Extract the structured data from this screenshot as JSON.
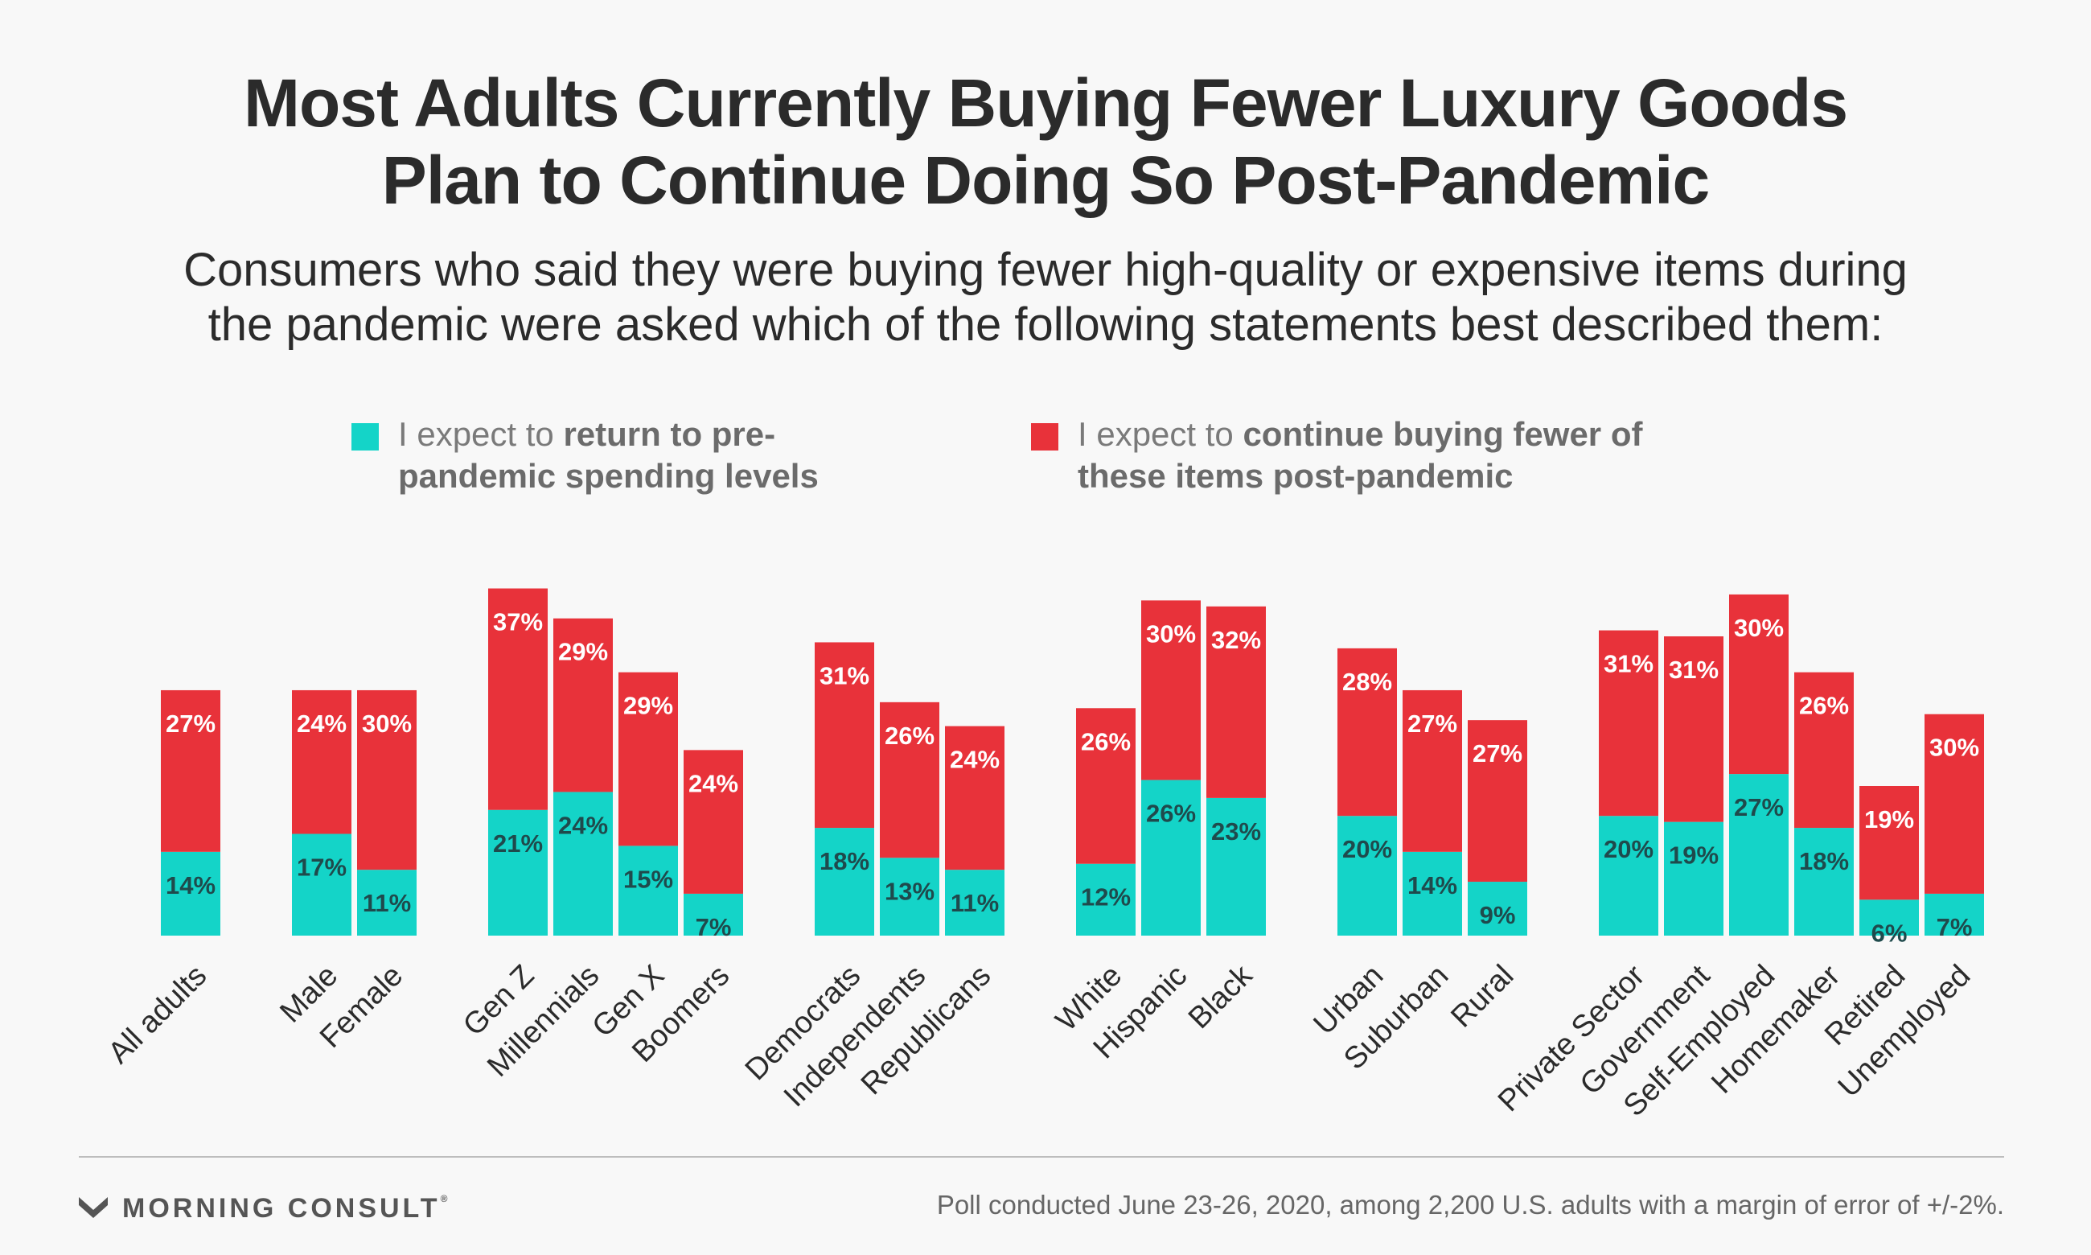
{
  "title": {
    "line1": "Most Adults Currently Buying Fewer Luxury Goods",
    "line2": "Plan to Continue Doing So Post-Pandemic"
  },
  "subtitle": {
    "line1": "Consumers who said they were buying fewer high-quality or expensive items during",
    "line2": "the pandemic were asked which of the following statements best described them:"
  },
  "legend": [
    {
      "color": "#14d4c8",
      "prefix": "I expect to ",
      "bold1": "return to pre-",
      "line2": "pandemic spending levels"
    },
    {
      "color": "#e8323a",
      "prefix": "I expect to ",
      "bold1": "continue buying fewer of",
      "line2": "these items post-pandemic"
    }
  ],
  "colors": {
    "return": "#14d4c8",
    "continue": "#e8323a",
    "return_label": "#1f4a4c",
    "continue_label": "#ffffff"
  },
  "chart_data": {
    "type": "bar",
    "stacked": true,
    "series": [
      {
        "name": "I expect to return to pre-pandemic spending levels",
        "color": "#14d4c8"
      },
      {
        "name": "I expect to continue buying fewer of these items post-pandemic",
        "color": "#e8323a"
      }
    ],
    "groups": [
      {
        "categories": [
          "All adults"
        ],
        "return": [
          14
        ],
        "continue": [
          27
        ]
      },
      {
        "categories": [
          "Male",
          "Female"
        ],
        "return": [
          17,
          11
        ],
        "continue": [
          24,
          30
        ]
      },
      {
        "categories": [
          "Gen Z",
          "Millennials",
          "Gen X",
          "Boomers"
        ],
        "return": [
          21,
          24,
          15,
          7
        ],
        "continue": [
          37,
          29,
          29,
          24
        ]
      },
      {
        "categories": [
          "Democrats",
          "Independents",
          "Republicans"
        ],
        "return": [
          18,
          13,
          11
        ],
        "continue": [
          31,
          26,
          24
        ]
      },
      {
        "categories": [
          "White",
          "Hispanic",
          "Black"
        ],
        "return": [
          12,
          26,
          23
        ],
        "continue": [
          26,
          30,
          32
        ]
      },
      {
        "categories": [
          "Urban",
          "Suburban",
          "Rural"
        ],
        "return": [
          20,
          14,
          9
        ],
        "continue": [
          28,
          27,
          27
        ]
      },
      {
        "categories": [
          "Private Sector",
          "Government",
          "Self-Employed",
          "Homemaker",
          "Retired",
          "Unemployed"
        ],
        "return": [
          20,
          19,
          27,
          18,
          6,
          7
        ],
        "continue": [
          31,
          31,
          30,
          26,
          19,
          30
        ]
      }
    ],
    "value_suffix": "%",
    "axes_visible": false,
    "grid": false,
    "legend_position": "top"
  },
  "footer": {
    "logo_text": "MORNING CONSULT",
    "logo_mark": "®",
    "source": "Poll conducted June 23-26, 2020, among 2,200 U.S. adults with a margin of error of +/-2%."
  }
}
